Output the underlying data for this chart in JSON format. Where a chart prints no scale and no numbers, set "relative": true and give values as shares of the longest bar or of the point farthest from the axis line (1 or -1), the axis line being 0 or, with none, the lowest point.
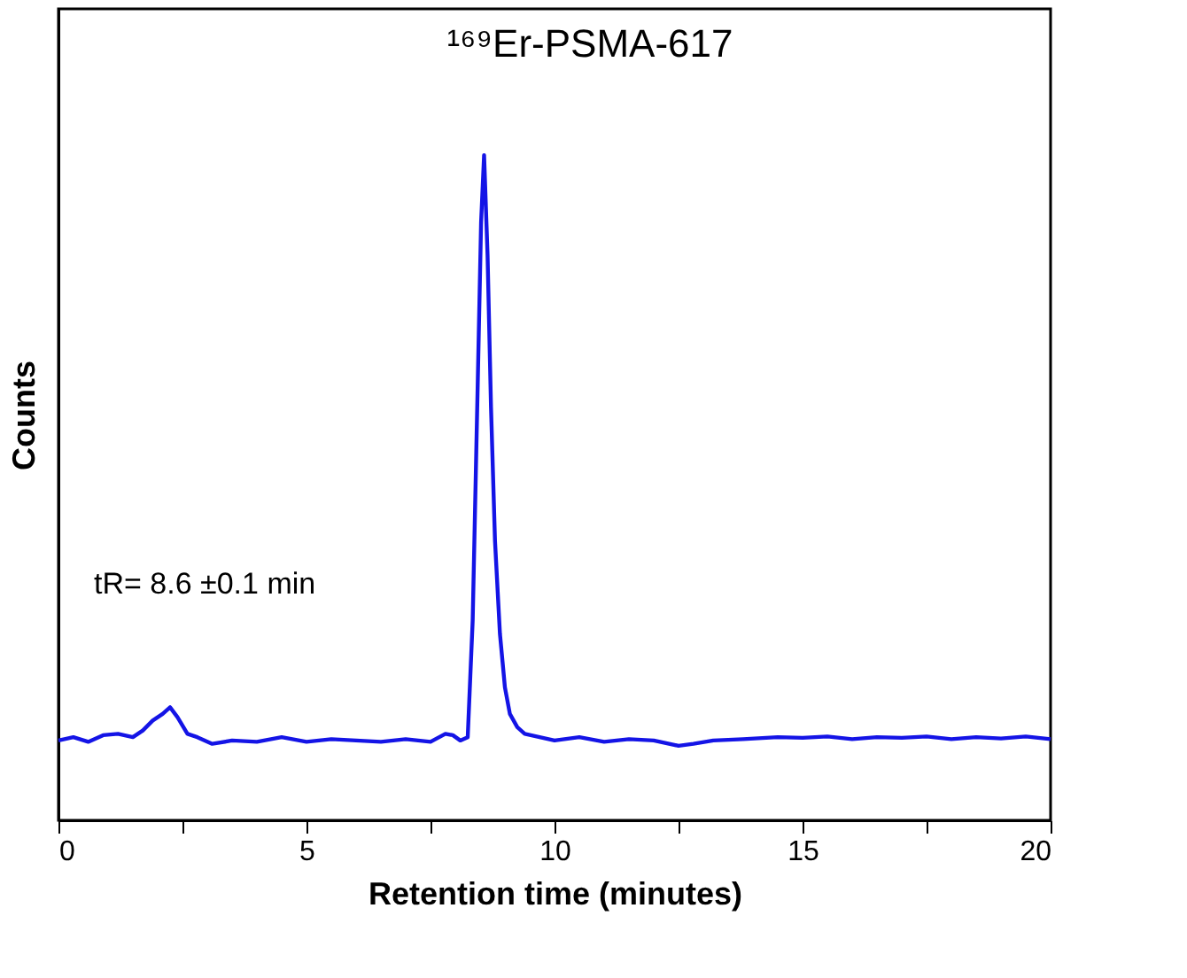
{
  "chart_data": {
    "type": "line",
    "xlabel": "Retention time (minutes)",
    "ylabel": "Counts",
    "relative": true,
    "line_style": "solid",
    "marker": "none",
    "grid": false,
    "xlim": [
      0,
      20
    ],
    "xticks": [
      0,
      {
        "value": 2.5,
        "label": null
      },
      5,
      {
        "value": 7.5,
        "label": null
      },
      10,
      {
        "value": 12.5,
        "label": null
      },
      15,
      {
        "value": 17.5,
        "label": null
      },
      20
    ],
    "annotations": [
      "¹⁶⁹Er-PSMA-617",
      "tR= 8.6 ±0.1 min"
    ],
    "series": [
      {
        "color": "#1414e6",
        "x": [
          0,
          0.3,
          0.6,
          0.9,
          1.2,
          1.5,
          1.7,
          1.9,
          2.1,
          2.25,
          2.4,
          2.6,
          2.8,
          3.1,
          3.5,
          4.0,
          4.5,
          5.0,
          5.5,
          6.0,
          6.5,
          7.0,
          7.5,
          7.8,
          7.95,
          8.1,
          8.25,
          8.35,
          8.45,
          8.52,
          8.58,
          8.65,
          8.72,
          8.8,
          8.9,
          9.0,
          9.1,
          9.25,
          9.4,
          9.7,
          10.0,
          10.5,
          11.0,
          11.5,
          12.0,
          12.5,
          12.8,
          13.2,
          13.8,
          14.5,
          15.0,
          15.5,
          16.0,
          16.5,
          17.0,
          17.5,
          18.0,
          18.5,
          19.0,
          19.5,
          20.0
        ],
        "values": [
          0.12,
          0.125,
          0.118,
          0.128,
          0.13,
          0.125,
          0.135,
          0.15,
          0.16,
          0.17,
          0.155,
          0.13,
          0.125,
          0.115,
          0.12,
          0.118,
          0.125,
          0.118,
          0.122,
          0.12,
          0.118,
          0.122,
          0.118,
          0.13,
          0.128,
          0.12,
          0.125,
          0.3,
          0.65,
          0.9,
          1.0,
          0.85,
          0.62,
          0.42,
          0.28,
          0.2,
          0.16,
          0.14,
          0.13,
          0.125,
          0.12,
          0.125,
          0.118,
          0.122,
          0.12,
          0.112,
          0.115,
          0.12,
          0.122,
          0.125,
          0.124,
          0.126,
          0.122,
          0.125,
          0.124,
          0.126,
          0.122,
          0.125,
          0.123,
          0.126,
          0.122
        ]
      }
    ]
  }
}
